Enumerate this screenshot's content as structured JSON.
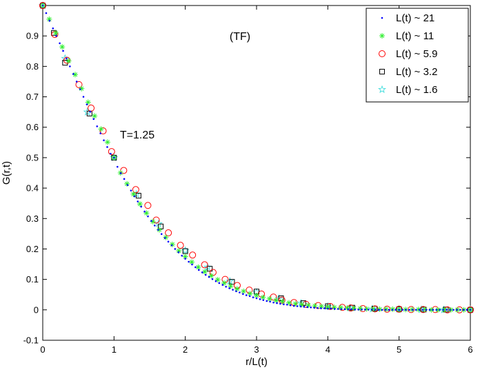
{
  "chart_data": {
    "type": "scatter",
    "title": "",
    "xlabel": "r/L(t)",
    "ylabel": "G(r,t)",
    "xlim": [
      0,
      6
    ],
    "ylim": [
      -0.1,
      1.0
    ],
    "xticks": [
      0,
      1,
      2,
      3,
      4,
      5,
      6
    ],
    "yticks": [
      -0.1,
      0,
      0.1,
      0.2,
      0.3,
      0.4,
      0.5,
      0.6,
      0.7,
      0.8,
      0.9
    ],
    "grid": false,
    "legend_position": "top-right",
    "annotations": [
      "(TF)",
      "T=1.25"
    ],
    "series": [
      {
        "name": "L(t) ~ 21",
        "marker": "dot",
        "color": "#0000ff",
        "x": [
          0,
          0.048,
          0.095,
          0.143,
          0.19,
          0.238,
          0.286,
          0.333,
          0.381,
          0.429,
          0.476,
          0.524,
          0.571,
          0.619,
          0.667,
          0.714,
          0.762,
          0.81,
          0.857,
          0.905,
          0.952,
          1.0,
          1.048,
          1.095,
          1.143,
          1.19,
          1.238,
          1.286,
          1.333,
          1.381,
          1.429,
          1.476,
          1.524,
          1.571,
          1.619,
          1.667,
          1.714,
          1.762,
          1.81,
          1.857,
          1.905,
          1.952,
          2.0,
          2.048,
          2.095,
          2.143,
          2.19,
          2.238,
          2.286,
          2.333,
          2.381,
          2.429,
          2.476,
          2.524,
          2.571,
          2.619,
          2.667,
          2.714,
          2.762,
          2.81,
          2.857,
          2.905,
          2.952,
          3.0,
          3.048,
          3.095,
          3.143,
          3.19,
          3.238,
          3.286,
          3.333,
          3.381,
          3.429,
          3.476,
          3.524,
          3.571,
          3.619,
          3.667,
          3.714,
          3.762,
          3.81,
          3.857,
          3.905,
          3.952,
          4.0,
          4.048,
          4.095,
          4.143,
          4.19,
          4.238,
          4.286,
          4.333,
          4.381,
          4.429,
          4.476,
          4.524,
          4.571,
          4.619,
          4.667,
          4.714,
          4.762,
          4.81,
          4.857,
          4.905,
          4.952,
          5.0,
          5.048,
          5.095,
          5.143,
          5.19,
          5.238,
          5.286,
          5.333,
          5.381,
          5.429,
          5.476,
          5.524,
          5.571,
          5.619,
          5.667,
          5.714,
          5.762,
          5.81,
          5.857,
          5.905,
          5.952,
          6.0
        ],
        "y": [
          1.0,
          0.975,
          0.95,
          0.925,
          0.9,
          0.876,
          0.851,
          0.826,
          0.8,
          0.775,
          0.75,
          0.725,
          0.7,
          0.675,
          0.651,
          0.627,
          0.603,
          0.58,
          0.557,
          0.535,
          0.513,
          0.5,
          0.47,
          0.449,
          0.43,
          0.41,
          0.392,
          0.373,
          0.356,
          0.339,
          0.323,
          0.307,
          0.292,
          0.277,
          0.263,
          0.249,
          0.236,
          0.224,
          0.212,
          0.2,
          0.189,
          0.178,
          0.168,
          0.158,
          0.149,
          0.14,
          0.131,
          0.123,
          0.115,
          0.108,
          0.101,
          0.094,
          0.088,
          0.082,
          0.076,
          0.071,
          0.066,
          0.061,
          0.057,
          0.052,
          0.048,
          0.045,
          0.041,
          0.038,
          0.035,
          0.032,
          0.029,
          0.027,
          0.024,
          0.022,
          0.02,
          0.018,
          0.017,
          0.015,
          0.013,
          0.012,
          0.011,
          0.01,
          0.009,
          0.008,
          0.007,
          0.006,
          0.005,
          0.005,
          0.004,
          0.004,
          0.003,
          0.003,
          0.002,
          0.002,
          0.002,
          0.002,
          0.001,
          0.001,
          0.001,
          0.001,
          0.001,
          0.001,
          0.001,
          0.0,
          0.0,
          0.0,
          0.0,
          0.0,
          0.0,
          0.0,
          0.0,
          0.0,
          0.0,
          0.0,
          0.0,
          0.0,
          0.0,
          0.0,
          0.0,
          0.0,
          0.0,
          0.0,
          0.0,
          0.0,
          0.0,
          0.0,
          0.0,
          0.0,
          0.0,
          0.0,
          0.0
        ]
      },
      {
        "name": "L(t) ~ 11",
        "marker": "asterisk",
        "color": "#33ee33",
        "x": [
          0,
          0.091,
          0.182,
          0.273,
          0.364,
          0.455,
          0.545,
          0.636,
          0.727,
          0.818,
          0.909,
          1.0,
          1.091,
          1.182,
          1.273,
          1.364,
          1.455,
          1.545,
          1.636,
          1.727,
          1.818,
          1.909,
          2.0,
          2.091,
          2.182,
          2.273,
          2.364,
          2.455,
          2.545,
          2.636,
          2.727,
          2.818,
          2.909,
          3.0,
          3.091,
          3.182,
          3.273,
          3.364,
          3.455,
          3.545,
          3.636,
          3.727,
          3.818,
          3.909,
          4.0,
          4.091,
          4.182,
          4.273,
          4.364,
          4.455,
          4.545,
          4.636,
          4.727,
          4.818,
          4.909,
          5.0,
          5.091,
          5.182,
          5.273,
          5.364,
          5.455,
          5.545,
          5.636,
          5.727,
          5.818,
          5.909,
          6.0
        ],
        "y": [
          1.0,
          0.955,
          0.91,
          0.864,
          0.818,
          0.773,
          0.727,
          0.682,
          0.637,
          0.594,
          0.551,
          0.5,
          0.45,
          0.414,
          0.38,
          0.348,
          0.318,
          0.29,
          0.263,
          0.238,
          0.215,
          0.194,
          0.175,
          0.157,
          0.14,
          0.125,
          0.112,
          0.099,
          0.088,
          0.078,
          0.069,
          0.061,
          0.053,
          0.047,
          0.041,
          0.036,
          0.031,
          0.027,
          0.023,
          0.02,
          0.017,
          0.015,
          0.013,
          0.011,
          0.009,
          0.008,
          0.007,
          0.006,
          0.005,
          0.004,
          0.003,
          0.003,
          0.002,
          0.002,
          0.002,
          0.001,
          0.001,
          0.001,
          0.001,
          0.001,
          0.0,
          0.0,
          0.0,
          0.0,
          0.0,
          0.0,
          0.0
        ]
      },
      {
        "name": "L(t) ~ 5.9",
        "marker": "circle",
        "color": "#ff0000",
        "x": [
          0,
          0.169,
          0.339,
          0.508,
          0.678,
          0.847,
          0.966,
          1.136,
          1.305,
          1.475,
          1.593,
          1.763,
          1.932,
          2.102,
          2.271,
          2.39,
          2.559,
          2.729,
          2.898,
          3.068,
          3.237,
          3.356,
          3.525,
          3.695,
          3.864,
          4.034,
          4.203,
          4.322,
          4.492,
          4.661,
          4.831,
          5.0,
          5.169,
          5.339,
          5.508,
          5.678,
          5.847,
          6.0
        ],
        "y": [
          1.0,
          0.905,
          0.82,
          0.74,
          0.663,
          0.588,
          0.52,
          0.458,
          0.395,
          0.343,
          0.295,
          0.253,
          0.212,
          0.18,
          0.148,
          0.123,
          0.1,
          0.08,
          0.065,
          0.052,
          0.042,
          0.032,
          0.024,
          0.018,
          0.014,
          0.011,
          0.008,
          0.006,
          0.004,
          0.003,
          0.002,
          0.002,
          0.001,
          0.001,
          0.001,
          0.0,
          0.0,
          0.0
        ]
      },
      {
        "name": "L(t) ~ 3.2",
        "marker": "square",
        "color": "#000000",
        "x": [
          0,
          0.156,
          0.313,
          0.656,
          1.0,
          1.344,
          1.656,
          2.0,
          2.344,
          2.656,
          3.0,
          3.344,
          3.656,
          4.0,
          4.344,
          4.656,
          5.0,
          5.344,
          5.656,
          6.0
        ],
        "y": [
          1.0,
          0.91,
          0.812,
          0.645,
          0.5,
          0.375,
          0.274,
          0.193,
          0.135,
          0.092,
          0.06,
          0.038,
          0.022,
          0.012,
          0.007,
          0.004,
          0.002,
          0.001,
          0.001,
          0.0
        ]
      },
      {
        "name": "L(t) ~ 1.6",
        "marker": "star",
        "color": "#44dddd",
        "x": [
          0,
          0.313,
          0.625,
          1.0,
          1.313,
          1.625,
          2.0,
          2.313,
          2.625,
          3.0,
          3.313,
          3.625,
          4.0,
          4.313,
          4.625,
          5.0,
          5.313,
          5.625,
          6.0
        ],
        "y": [
          1.0,
          0.826,
          0.65,
          0.5,
          0.38,
          0.283,
          0.195,
          0.14,
          0.094,
          0.058,
          0.037,
          0.022,
          0.011,
          0.006,
          0.003,
          0.002,
          0.001,
          0.0,
          0.0
        ]
      }
    ]
  }
}
